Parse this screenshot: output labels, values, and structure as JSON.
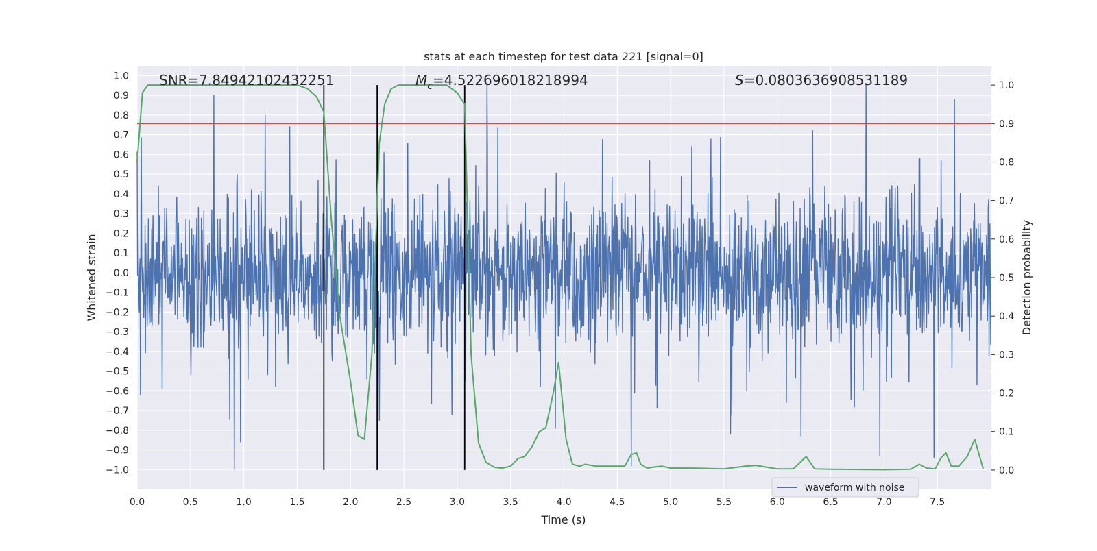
{
  "chart_data": {
    "type": "line",
    "title": "stats at each timestep for test data 221 [signal=0]",
    "xlabel": "Time (s)",
    "ylabel_left": "Whitened strain",
    "ylabel_right": "Detection probability",
    "xlim": [
      0,
      8
    ],
    "ylim_left": [
      -1.1,
      1.05
    ],
    "ylim_right": [
      -0.05,
      1.05
    ],
    "x_ticks": [
      0.0,
      0.5,
      1.0,
      1.5,
      2.0,
      2.5,
      3.0,
      3.5,
      4.0,
      4.5,
      5.0,
      5.5,
      6.0,
      6.5,
      7.0,
      7.5
    ],
    "x_tick_labels": [
      "0.0",
      "0.5",
      "1.0",
      "1.5",
      "2.0",
      "2.5",
      "3.0",
      "3.5",
      "4.0",
      "4.5",
      "5.0",
      "5.5",
      "6.0",
      "6.5",
      "7.0",
      "7.5"
    ],
    "y_left_ticks": [
      1.0,
      0.9,
      0.8,
      0.7,
      0.6,
      0.5,
      0.4,
      0.3,
      0.2,
      0.1,
      0.0,
      -0.1,
      -0.2,
      -0.3,
      -0.4,
      -0.5,
      -0.6,
      -0.7,
      -0.8,
      -0.9,
      -1.0
    ],
    "y_left_tick_labels": [
      "1.0",
      "0.9",
      "0.8",
      "0.7",
      "0.6",
      "0.5",
      "0.4",
      "0.3",
      "0.2",
      "0.1",
      "0.0",
      "−0.1",
      "−0.2",
      "−0.3",
      "−0.4",
      "−0.5",
      "−0.6",
      "−0.7",
      "−0.8",
      "−0.9",
      "−1.0"
    ],
    "y_right_ticks": [
      1.0,
      0.9,
      0.8,
      0.7,
      0.6,
      0.5,
      0.4,
      0.3,
      0.2,
      0.1,
      0.0
    ],
    "y_right_tick_labels": [
      "1.0",
      "0.9",
      "0.8",
      "0.7",
      "0.6",
      "0.5",
      "0.4",
      "0.3",
      "0.2",
      "0.1",
      "0.0"
    ],
    "threshold": 0.9,
    "threshold_color": "#c44e52",
    "vertical_lines_x": [
      1.75,
      2.25,
      3.07
    ],
    "annotations": {
      "snr": "SNR=7.84942102432251",
      "mc_symbol": "M",
      "mc_subscript": "c",
      "mc_value": "=4.522696018218994",
      "s_symbol": "S",
      "s_value": "=0.0803636908531189"
    },
    "series": [
      {
        "name": "waveform with noise",
        "axis": "left",
        "color": "#4c72b0",
        "sampled": true,
        "n_samples": 2048,
        "core_envelope": 0.38,
        "typical_peak": 0.55,
        "max_abs": 1.0,
        "highlighted_peaks": [
          {
            "x": 0.72,
            "y": 0.9
          },
          {
            "x": 0.91,
            "y": -1.0
          },
          {
            "x": 0.97,
            "y": -0.86
          },
          {
            "x": 1.2,
            "y": 0.8
          },
          {
            "x": 3.28,
            "y": 0.97
          },
          {
            "x": 6.83,
            "y": 0.96
          },
          {
            "x": 7.66,
            "y": 0.88
          },
          {
            "x": 4.63,
            "y": -0.98
          },
          {
            "x": 7.47,
            "y": -0.94
          },
          {
            "x": 6.96,
            "y": -0.93
          },
          {
            "x": 5.56,
            "y": -0.82
          },
          {
            "x": 3.92,
            "y": -0.79
          },
          {
            "x": 2.27,
            "y": -0.75
          },
          {
            "x": 6.22,
            "y": -0.83
          }
        ]
      },
      {
        "name": "detection probability",
        "axis": "right",
        "color": "#55a868",
        "x": [
          0.0,
          0.05,
          0.1,
          0.2,
          0.5,
          1.0,
          1.5,
          1.6,
          1.68,
          1.75,
          1.82,
          1.9,
          2.0,
          2.07,
          2.13,
          2.2,
          2.27,
          2.32,
          2.38,
          2.45,
          2.6,
          2.9,
          3.0,
          3.07,
          3.13,
          3.2,
          3.27,
          3.35,
          3.42,
          3.5,
          3.57,
          3.63,
          3.7,
          3.77,
          3.83,
          3.9,
          3.95,
          4.02,
          4.08,
          4.15,
          4.2,
          4.3,
          4.4,
          4.5,
          4.57,
          4.63,
          4.68,
          4.72,
          4.78,
          4.85,
          4.92,
          5.0,
          5.2,
          5.5,
          5.7,
          5.8,
          6.0,
          6.15,
          6.27,
          6.35,
          6.5,
          7.0,
          7.25,
          7.33,
          7.4,
          7.48,
          7.53,
          7.58,
          7.63,
          7.7,
          7.78,
          7.85,
          7.93
        ],
        "y": [
          0.8,
          0.98,
          1.0,
          1.0,
          1.0,
          1.0,
          1.0,
          0.99,
          0.97,
          0.93,
          0.65,
          0.4,
          0.23,
          0.09,
          0.08,
          0.3,
          0.85,
          0.95,
          0.99,
          1.0,
          1.0,
          1.0,
          0.98,
          0.95,
          0.3,
          0.07,
          0.02,
          0.007,
          0.005,
          0.01,
          0.03,
          0.035,
          0.06,
          0.1,
          0.11,
          0.2,
          0.28,
          0.08,
          0.015,
          0.01,
          0.015,
          0.01,
          0.01,
          0.01,
          0.01,
          0.04,
          0.045,
          0.015,
          0.005,
          0.008,
          0.01,
          0.005,
          0.005,
          0.003,
          0.01,
          0.012,
          0.003,
          0.003,
          0.035,
          0.003,
          0.002,
          0.001,
          0.002,
          0.015,
          0.005,
          0.003,
          0.03,
          0.045,
          0.01,
          0.01,
          0.035,
          0.08,
          0.003
        ]
      }
    ],
    "legend": {
      "label": "waveform with noise",
      "placement": "lower-center"
    }
  }
}
